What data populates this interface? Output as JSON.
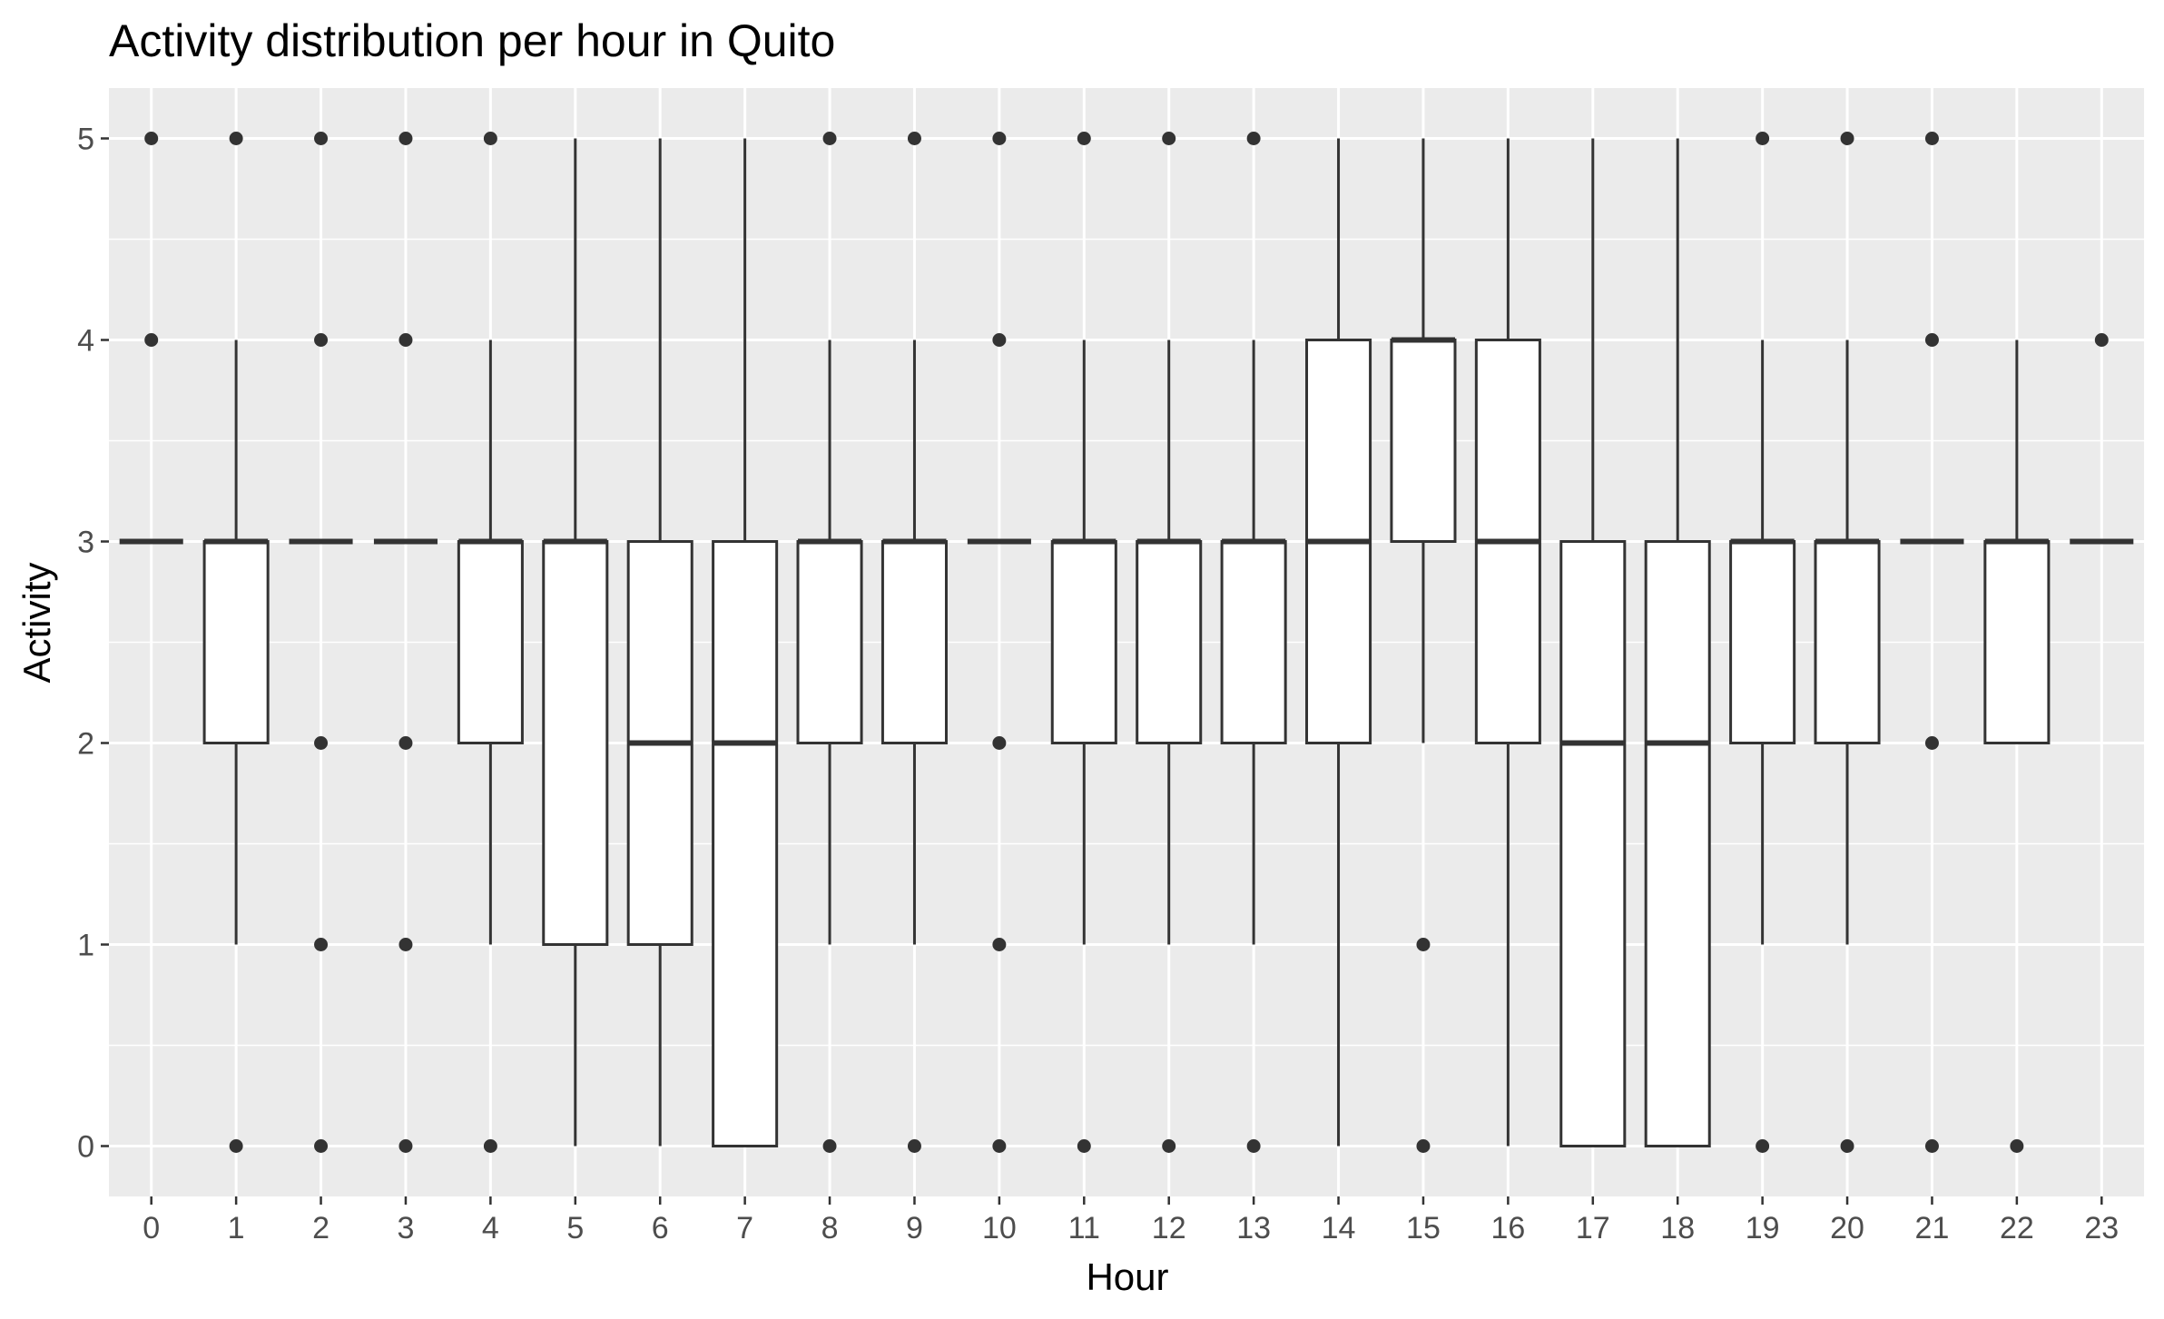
{
  "chart_data": {
    "type": "boxplot",
    "title": "Activity distribution per hour in Quito",
    "xlabel": "Hour",
    "ylabel": "Activity",
    "ylim": [
      -0.25,
      5.25
    ],
    "y_ticks": [
      0,
      1,
      2,
      3,
      4,
      5
    ],
    "y_tick_labels": [
      "0",
      "1",
      "2",
      "3",
      "4",
      "5"
    ],
    "grid": true,
    "colors": {
      "panel": "#ebebeb",
      "grid": "#ffffff",
      "box_fill": "#ffffff",
      "box_stroke": "#333333",
      "outlier": "#333333"
    },
    "categories": [
      "0",
      "1",
      "2",
      "3",
      "4",
      "5",
      "6",
      "7",
      "8",
      "9",
      "10",
      "11",
      "12",
      "13",
      "14",
      "15",
      "16",
      "17",
      "18",
      "19",
      "20",
      "21",
      "22",
      "23"
    ],
    "boxes": [
      {
        "x": "0",
        "lower": 3,
        "q1": 3,
        "median": 3,
        "q3": 3,
        "upper": 3,
        "outliers": [
          4,
          5
        ]
      },
      {
        "x": "1",
        "lower": 1,
        "q1": 2,
        "median": 3,
        "q3": 3,
        "upper": 4,
        "outliers": [
          0,
          5
        ]
      },
      {
        "x": "2",
        "lower": 3,
        "q1": 3,
        "median": 3,
        "q3": 3,
        "upper": 3,
        "outliers": [
          0,
          1,
          2,
          4,
          5
        ]
      },
      {
        "x": "3",
        "lower": 3,
        "q1": 3,
        "median": 3,
        "q3": 3,
        "upper": 3,
        "outliers": [
          0,
          1,
          2,
          4,
          5
        ]
      },
      {
        "x": "4",
        "lower": 1,
        "q1": 2,
        "median": 3,
        "q3": 3,
        "upper": 4,
        "outliers": [
          0,
          5
        ]
      },
      {
        "x": "5",
        "lower": 0,
        "q1": 1,
        "median": 3,
        "q3": 3,
        "upper": 5,
        "outliers": []
      },
      {
        "x": "6",
        "lower": 0,
        "q1": 1,
        "median": 2,
        "q3": 3,
        "upper": 5,
        "outliers": []
      },
      {
        "x": "7",
        "lower": 0,
        "q1": 0,
        "median": 2,
        "q3": 3,
        "upper": 5,
        "outliers": []
      },
      {
        "x": "8",
        "lower": 1,
        "q1": 2,
        "median": 3,
        "q3": 3,
        "upper": 4,
        "outliers": [
          0,
          5
        ]
      },
      {
        "x": "9",
        "lower": 1,
        "q1": 2,
        "median": 3,
        "q3": 3,
        "upper": 4,
        "outliers": [
          0,
          5
        ]
      },
      {
        "x": "10",
        "lower": 3,
        "q1": 3,
        "median": 3,
        "q3": 3,
        "upper": 3,
        "outliers": [
          0,
          1,
          2,
          4,
          5
        ]
      },
      {
        "x": "11",
        "lower": 1,
        "q1": 2,
        "median": 3,
        "q3": 3,
        "upper": 4,
        "outliers": [
          0,
          5
        ]
      },
      {
        "x": "12",
        "lower": 1,
        "q1": 2,
        "median": 3,
        "q3": 3,
        "upper": 4,
        "outliers": [
          0,
          5
        ]
      },
      {
        "x": "13",
        "lower": 1,
        "q1": 2,
        "median": 3,
        "q3": 3,
        "upper": 4,
        "outliers": [
          0,
          5
        ]
      },
      {
        "x": "14",
        "lower": 0,
        "q1": 2,
        "median": 3,
        "q3": 4,
        "upper": 5,
        "outliers": []
      },
      {
        "x": "15",
        "lower": 2,
        "q1": 3,
        "median": 4,
        "q3": 4,
        "upper": 5,
        "outliers": [
          0,
          1
        ]
      },
      {
        "x": "16",
        "lower": 0,
        "q1": 2,
        "median": 3,
        "q3": 4,
        "upper": 5,
        "outliers": []
      },
      {
        "x": "17",
        "lower": 0,
        "q1": 0,
        "median": 2,
        "q3": 3,
        "upper": 5,
        "outliers": []
      },
      {
        "x": "18",
        "lower": 0,
        "q1": 0,
        "median": 2,
        "q3": 3,
        "upper": 5,
        "outliers": []
      },
      {
        "x": "19",
        "lower": 1,
        "q1": 2,
        "median": 3,
        "q3": 3,
        "upper": 4,
        "outliers": [
          0,
          5
        ]
      },
      {
        "x": "20",
        "lower": 1,
        "q1": 2,
        "median": 3,
        "q3": 3,
        "upper": 4,
        "outliers": [
          0,
          5
        ]
      },
      {
        "x": "21",
        "lower": 3,
        "q1": 3,
        "median": 3,
        "q3": 3,
        "upper": 3,
        "outliers": [
          0,
          2,
          4,
          5
        ]
      },
      {
        "x": "22",
        "lower": 2,
        "q1": 2,
        "median": 3,
        "q3": 3,
        "upper": 4,
        "outliers": [
          0
        ]
      },
      {
        "x": "23",
        "lower": 3,
        "q1": 3,
        "median": 3,
        "q3": 3,
        "upper": 3,
        "outliers": [
          4
        ]
      }
    ]
  }
}
